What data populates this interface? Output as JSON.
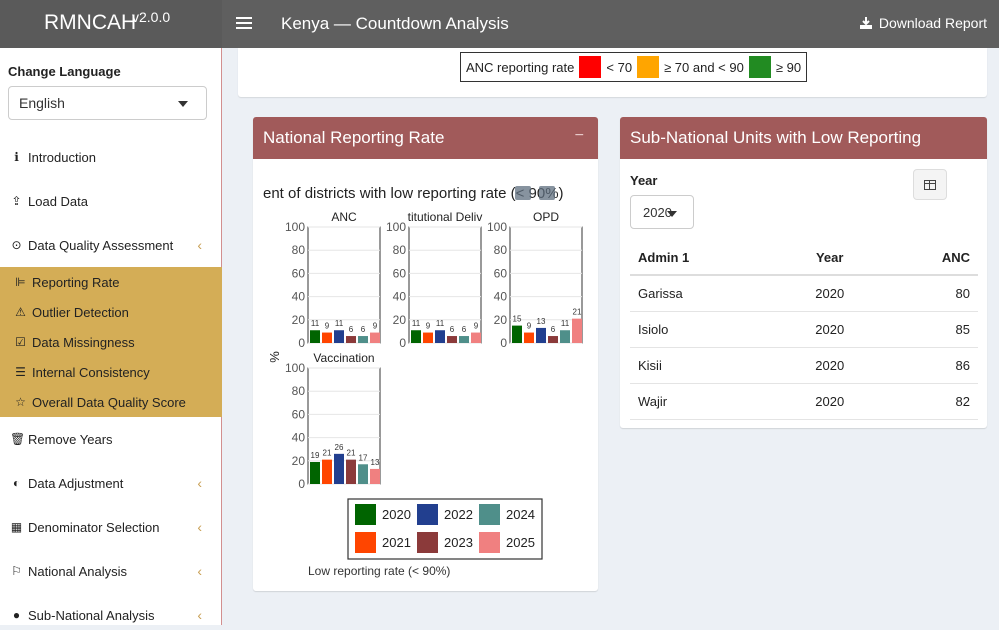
{
  "header": {
    "brand": "RMNCAH",
    "version": "v2.0.0",
    "title": "Kenya — Countdown Analysis",
    "download_label": "Download Report"
  },
  "sidebar": {
    "language_label": "Change Language",
    "language_value": "English",
    "items": [
      {
        "label": "Introduction",
        "icon": "info-circle-icon"
      },
      {
        "label": "Load Data",
        "icon": "upload-icon"
      },
      {
        "label": "Data Quality Assessment",
        "icon": "check-circle-icon"
      },
      {
        "label": "Remove Years",
        "icon": "trash-icon"
      },
      {
        "label": "Data Adjustment",
        "icon": "half-circle-icon"
      },
      {
        "label": "Denominator Selection",
        "icon": "calculator-icon"
      },
      {
        "label": "National Analysis",
        "icon": "flag-icon"
      },
      {
        "label": "Sub-National Analysis",
        "icon": "globe-icon"
      }
    ],
    "subitems": [
      {
        "label": "Reporting Rate",
        "icon": "chart-line-icon"
      },
      {
        "label": "Outlier Detection",
        "icon": "warning-icon"
      },
      {
        "label": "Data Missingness",
        "icon": "checkbox-icon"
      },
      {
        "label": "Internal Consistency",
        "icon": "list-check-icon"
      },
      {
        "label": "Overall Data Quality Score",
        "icon": "star-icon"
      }
    ]
  },
  "legend": {
    "label": "ANC reporting rate",
    "ranges": [
      {
        "text": "< 70",
        "color": "#ff0000"
      },
      {
        "text": "≥ 70 and < 90",
        "color": "#ffa500"
      },
      {
        "text": "≥ 90",
        "color": "#228b22"
      }
    ]
  },
  "national_box": {
    "title": "National Reporting Rate",
    "collapse": "−",
    "chart_title": "ent of districts with low reporting rate (< 90%)"
  },
  "subnational_box": {
    "title": "Sub-National Units with Low Reporting",
    "year_label": "Year",
    "year_value": "2020",
    "columns": [
      "Admin 1",
      "Year",
      "ANC"
    ],
    "rows": [
      [
        "Garissa",
        "2020",
        "80"
      ],
      [
        "Isiolo",
        "2020",
        "85"
      ],
      [
        "Kisii",
        "2020",
        "86"
      ],
      [
        "Wajir",
        "2020",
        "82"
      ]
    ]
  },
  "chart_data": {
    "type": "bar",
    "title": "ent of districts with low reporting rate (< 90%)",
    "ylabel": "%",
    "ylim": [
      0,
      100
    ],
    "yticks": [
      0,
      20,
      40,
      60,
      80,
      100
    ],
    "caption": "Low reporting rate (< 90%)",
    "years": [
      "2020",
      "2021",
      "2022",
      "2023",
      "2024",
      "2025"
    ],
    "colors": [
      "#006400",
      "#ff4500",
      "#223f8f",
      "#8b3a3a",
      "#4f8f8a",
      "#f08080"
    ],
    "panels": [
      {
        "name": "ANC",
        "values": [
          11,
          9,
          11,
          6,
          6,
          9
        ]
      },
      {
        "name": "titutional Deliv",
        "values": [
          11,
          9,
          11,
          6,
          6,
          9
        ]
      },
      {
        "name": "OPD",
        "values": [
          15,
          9,
          13,
          6,
          11,
          21
        ]
      },
      {
        "name": "Vaccination",
        "values": [
          19,
          21,
          26,
          21,
          17,
          13
        ]
      }
    ]
  }
}
